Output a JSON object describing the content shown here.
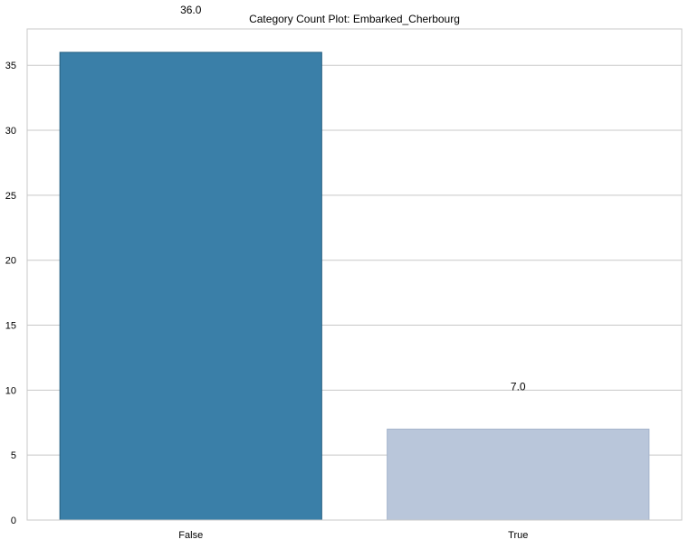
{
  "chart_data": {
    "type": "bar",
    "title": "Category Count Plot: Embarked_Cherbourg",
    "xlabel": "",
    "ylabel": "",
    "categories": [
      "False",
      "True"
    ],
    "values": [
      36.0,
      7.0
    ],
    "data_labels": [
      "36.0",
      "7.0"
    ],
    "ylim": [
      0,
      37.8
    ],
    "yticks": [
      0,
      5,
      10,
      15,
      20,
      25,
      30,
      35
    ],
    "grid": true,
    "legend": "none",
    "colors": {
      "bars": [
        "#3a7fa8",
        "#b9c6da"
      ],
      "bar_edges": [
        "#265f80",
        "#a4b4cc"
      ],
      "grid": "#c8c8c8",
      "spine": "#c8c8c8",
      "text": "#000000"
    }
  }
}
